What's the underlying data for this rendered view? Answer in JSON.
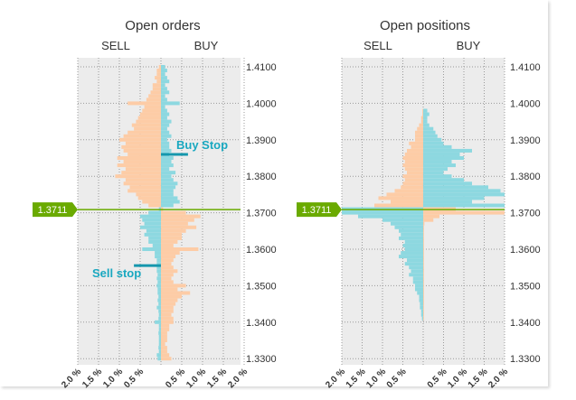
{
  "colors": {
    "orange": "#fdcca6",
    "cyan": "#8dd8e0",
    "green": "#6aaa00",
    "marker": "#1597ad",
    "plot_bg": "#ececec"
  },
  "chart_data": [
    {
      "type": "bar",
      "title": "Open orders",
      "left_label": "SELL",
      "right_label": "BUY",
      "current_price": 1.3711,
      "current_price_label": "1.3711",
      "y_ticks": [
        "1.4100",
        "1.4000",
        "1.3900",
        "1.3800",
        "1.3700",
        "1.3600",
        "1.3500",
        "1.3400",
        "1.3300"
      ],
      "ylim": [
        1.33,
        1.41
      ],
      "x_ticks_left": [
        "2.0 %",
        "1.5 %",
        "1.0 %",
        "0.5 %"
      ],
      "x_ticks_right": [
        "0.5 %",
        "1.0 %",
        "1.5 %",
        "2.0 %"
      ],
      "xlim_percent": 2.0,
      "annotations": [
        {
          "text": "Buy Stop",
          "price": 1.386,
          "side": "buy",
          "length": 0.65
        },
        {
          "text": "Sell stop",
          "price": 1.3555,
          "side": "sell",
          "length": 0.65
        }
      ],
      "levels": {
        "start": 1.41,
        "step": -0.001,
        "sell": [
          0.05,
          0.1,
          0.1,
          0.15,
          0.1,
          0.2,
          0.2,
          0.25,
          0.3,
          0.35,
          0.8,
          0.4,
          0.45,
          0.5,
          0.55,
          0.6,
          0.7,
          0.65,
          0.8,
          0.9,
          1.0,
          0.85,
          0.95,
          0.9,
          0.8,
          1.05,
          0.9,
          1.05,
          0.85,
          0.95,
          1.1,
          0.85,
          0.9,
          0.75,
          0.8,
          0.6,
          0.55,
          0.45,
          0.3,
          0.05,
          0.3,
          0.5,
          0.45,
          0.4,
          0.5,
          0.35,
          0.4,
          0.3,
          0.3,
          0.2,
          0.45,
          0.15,
          0.15,
          0.1,
          0.1,
          0.1,
          0.1,
          0.08,
          0.1,
          0.08,
          0.1,
          0.08,
          0.08,
          0.06,
          0.08,
          0.06,
          0.1,
          0.06,
          0.05,
          0.06,
          0.15,
          0.05,
          0.05,
          0.06,
          0.05,
          0.05,
          0.05,
          0.06,
          0.05,
          0.1,
          0.08
        ],
        "buy": [
          0.1,
          0.15,
          0.1,
          0.15,
          0.2,
          0.1,
          0.15,
          0.2,
          0.1,
          0.15,
          0.45,
          0.1,
          0.15,
          0.2,
          0.15,
          0.25,
          0.2,
          0.15,
          0.2,
          0.25,
          0.15,
          0.2,
          0.2,
          0.25,
          0.2,
          0.3,
          0.25,
          0.3,
          0.2,
          0.35,
          0.25,
          0.3,
          0.4,
          0.35,
          0.3,
          0.3,
          0.4,
          0.45,
          0.3,
          0.05,
          0.6,
          0.95,
          0.8,
          0.65,
          0.85,
          0.6,
          0.5,
          0.5,
          0.4,
          0.3,
          0.9,
          0.45,
          0.35,
          0.3,
          0.25,
          0.3,
          0.4,
          0.3,
          0.25,
          0.3,
          0.6,
          0.4,
          0.7,
          0.5,
          0.4,
          0.35,
          0.3,
          0.3,
          0.25,
          0.3,
          0.3,
          0.2,
          0.2,
          0.15,
          0.15,
          0.15,
          0.1,
          0.15,
          0.15,
          0.2,
          0.25
        ]
      }
    },
    {
      "type": "bar",
      "title": "Open positions",
      "left_label": "SELL",
      "right_label": "BUY",
      "current_price": 1.3711,
      "current_price_label": "1.3711",
      "y_ticks": [
        "1.4100",
        "1.4000",
        "1.3900",
        "1.3800",
        "1.3700",
        "1.3600",
        "1.3500",
        "1.3400",
        "1.3300"
      ],
      "ylim": [
        1.33,
        1.41
      ],
      "x_ticks_left": [
        "2.0 %",
        "1.5 %",
        "1.0 %",
        "0.5 %"
      ],
      "x_ticks_right": [
        "0.5 %",
        "1.0 %",
        "1.5 %",
        "2.0 %"
      ],
      "xlim_percent": 2.0,
      "annotations": [],
      "levels": {
        "start": 1.41,
        "step": -0.001,
        "sell": [
          0,
          0,
          0,
          0,
          0,
          0,
          0,
          0,
          0,
          0,
          0,
          0,
          0.02,
          0.02,
          0.05,
          0.05,
          0.1,
          0.15,
          0.2,
          0.2,
          0.2,
          0.35,
          0.3,
          0.4,
          0.45,
          0.5,
          0.45,
          0.5,
          0.45,
          0.4,
          0.5,
          0.45,
          0.5,
          0.55,
          0.7,
          0.9,
          1.1,
          0.8,
          1.2,
          2.0,
          2.0,
          1.6,
          1.0,
          0.8,
          0.7,
          0.6,
          0.55,
          0.6,
          0.45,
          0.5,
          0.45,
          0.55,
          0.6,
          0.4,
          0.45,
          0.35,
          0.3,
          0.35,
          0.25,
          0.25,
          0.2,
          0.2,
          0.15,
          0.1,
          0.1,
          0.08,
          0.08,
          0.05,
          0.05,
          0.03,
          0,
          0,
          0,
          0,
          0,
          0,
          0,
          0,
          0,
          0,
          0
        ],
        "buy": [
          0,
          0,
          0,
          0,
          0,
          0,
          0,
          0,
          0,
          0,
          0,
          0,
          0.1,
          0.15,
          0.1,
          0.1,
          0.15,
          0.25,
          0.3,
          0.35,
          0.45,
          0.5,
          0.7,
          1.2,
          0.9,
          1.0,
          0.7,
          0.8,
          0.6,
          0.5,
          0.7,
          1.0,
          1.2,
          1.6,
          1.9,
          2.0,
          1.5,
          1.2,
          2.0,
          0.8,
          2.0,
          0.4,
          0.25,
          0.03,
          0.02,
          0.02,
          0.02,
          0.02,
          0.02,
          0.02,
          0.02,
          0.02,
          0.02,
          0.02,
          0.02,
          0.02,
          0.02,
          0.02,
          0.02,
          0.02,
          0.02,
          0.02,
          0.02,
          0.02,
          0.02,
          0.02,
          0.02,
          0.02,
          0.02,
          0.02,
          0,
          0,
          0,
          0,
          0,
          0,
          0,
          0,
          0,
          0,
          0
        ]
      }
    }
  ]
}
